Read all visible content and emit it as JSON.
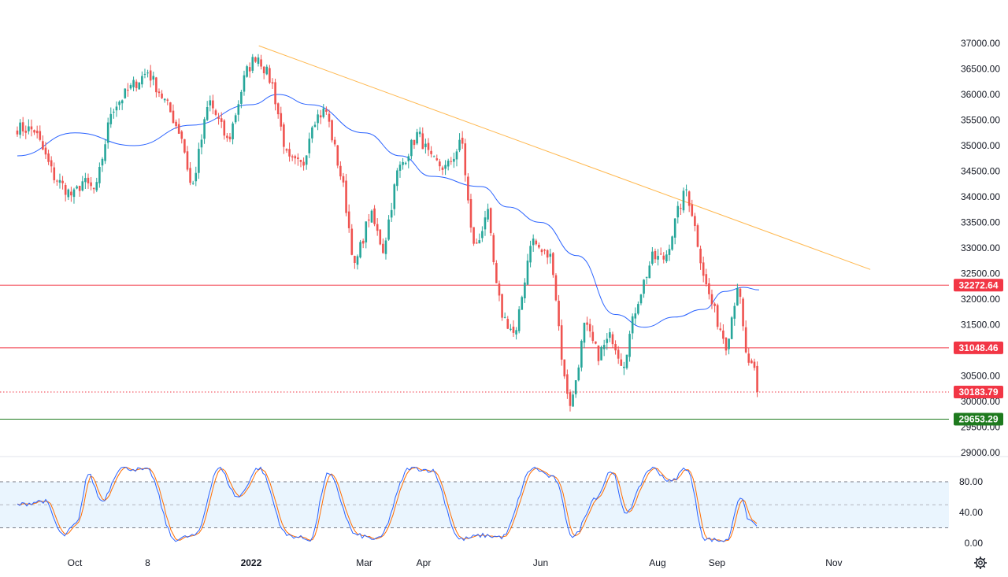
{
  "chart_data": {
    "type": "candlestick",
    "price_axis": {
      "ticks": [
        37000,
        36500,
        36000,
        35500,
        35000,
        34500,
        34000,
        33500,
        33000,
        32500,
        32000,
        31500,
        31000,
        30500,
        30000,
        29500,
        29000
      ],
      "tick_labels": [
        "37000.00",
        "36500.00",
        "36000.00",
        "35500.00",
        "35000.00",
        "34500.00",
        "34000.00",
        "33500.00",
        "33000.00",
        "32500.00",
        "32000.00",
        "31500.00",
        "31000.00",
        "30500.00",
        "30000.00",
        "29500.00",
        "29000.00"
      ],
      "range": [
        29000,
        37000
      ]
    },
    "time_axis": {
      "labels": [
        "Oct",
        "8",
        "2022",
        "Mar",
        "Apr",
        "Jun",
        "Aug",
        "Sep",
        "Nov"
      ],
      "bold_labels": [
        "2022"
      ]
    },
    "levels": [
      {
        "value": 32272.64,
        "label": "32272.64",
        "color": "#f23645",
        "style": "solid"
      },
      {
        "value": 31048.46,
        "label": "31048.46",
        "color": "#f23645",
        "style": "solid"
      },
      {
        "value": 30183.79,
        "label": "30183.79",
        "color": "#f23645",
        "style": "dotted"
      },
      {
        "value": 29653.29,
        "label": "29653.29",
        "color": "#1e7a1e",
        "style": "solid"
      }
    ],
    "trendline": {
      "from": {
        "date": "2022-01-05",
        "value": 36952
      },
      "to": {
        "date": "2022-11-20",
        "value": 32580
      },
      "color": "#ffb74d"
    },
    "moving_average_color": "#2962ff",
    "up_color": "#26a69a",
    "down_color": "#ef5350",
    "anchors": [
      [
        "2021-09-01",
        35350
      ],
      [
        "2021-09-10",
        35300
      ],
      [
        "2021-09-20",
        34400
      ],
      [
        "2021-09-30",
        34000
      ],
      [
        "2021-10-05",
        34300
      ],
      [
        "2021-10-12",
        34100
      ],
      [
        "2021-10-20",
        35700
      ],
      [
        "2021-11-01",
        36200
      ],
      [
        "2021-11-08",
        36450
      ],
      [
        "2021-11-18",
        35800
      ],
      [
        "2021-11-26",
        35150
      ],
      [
        "2021-12-01",
        34100
      ],
      [
        "2021-12-10",
        35900
      ],
      [
        "2021-12-20",
        35050
      ],
      [
        "2021-12-29",
        36400
      ],
      [
        "2022-01-04",
        36800
      ],
      [
        "2022-01-12",
        36200
      ],
      [
        "2022-01-20",
        34700
      ],
      [
        "2022-01-28",
        34600
      ],
      [
        "2022-02-02",
        35500
      ],
      [
        "2022-02-09",
        35700
      ],
      [
        "2022-02-18",
        34200
      ],
      [
        "2022-02-24",
        32600
      ],
      [
        "2022-03-04",
        33700
      ],
      [
        "2022-03-11",
        32950
      ],
      [
        "2022-03-18",
        34450
      ],
      [
        "2022-03-29",
        35250
      ],
      [
        "2022-04-05",
        34700
      ],
      [
        "2022-04-13",
        34550
      ],
      [
        "2022-04-21",
        35100
      ],
      [
        "2022-04-26",
        33200
      ],
      [
        "2022-04-29",
        33000
      ],
      [
        "2022-05-04",
        33800
      ],
      [
        "2022-05-09",
        32200
      ],
      [
        "2022-05-12",
        31700
      ],
      [
        "2022-05-19",
        31250
      ],
      [
        "2022-05-27",
        33200
      ],
      [
        "2022-06-02",
        32900
      ],
      [
        "2022-06-07",
        32800
      ],
      [
        "2022-06-13",
        30500
      ],
      [
        "2022-06-17",
        29890
      ],
      [
        "2022-06-24",
        31500
      ],
      [
        "2022-07-01",
        30900
      ],
      [
        "2022-07-08",
        31300
      ],
      [
        "2022-07-14",
        30700
      ],
      [
        "2022-07-21",
        31900
      ],
      [
        "2022-07-29",
        32800
      ],
      [
        "2022-08-05",
        32800
      ],
      [
        "2022-08-12",
        33750
      ],
      [
        "2022-08-16",
        34150
      ],
      [
        "2022-08-19",
        33700
      ],
      [
        "2022-08-26",
        32300
      ],
      [
        "2022-09-01",
        31600
      ],
      [
        "2022-09-06",
        31100
      ],
      [
        "2022-09-12",
        32350
      ],
      [
        "2022-09-16",
        30900
      ],
      [
        "2022-09-21",
        30500
      ],
      [
        "2022-09-23",
        30184
      ]
    ],
    "ma_points": [
      [
        "2021-09-01",
        34800
      ],
      [
        "2021-10-01",
        35250
      ],
      [
        "2021-11-01",
        35000
      ],
      [
        "2021-12-01",
        35400
      ],
      [
        "2022-01-01",
        35800
      ],
      [
        "2022-01-15",
        36000
      ],
      [
        "2022-02-01",
        35800
      ],
      [
        "2022-03-01",
        35250
      ],
      [
        "2022-03-20",
        34800
      ],
      [
        "2022-04-05",
        34400
      ],
      [
        "2022-05-01",
        34200
      ],
      [
        "2022-05-15",
        33800
      ],
      [
        "2022-06-01",
        33500
      ],
      [
        "2022-06-20",
        32850
      ],
      [
        "2022-07-10",
        31700
      ],
      [
        "2022-07-25",
        31450
      ],
      [
        "2022-08-10",
        31650
      ],
      [
        "2022-08-25",
        31800
      ],
      [
        "2022-09-05",
        32150
      ],
      [
        "2022-09-15",
        32230
      ],
      [
        "2022-09-23",
        32180
      ]
    ],
    "stochastic": {
      "ticks": [
        80,
        40,
        0
      ],
      "tick_labels": [
        "80.00",
        "40.00",
        "0.00"
      ],
      "band": [
        20,
        80
      ],
      "mid": 50,
      "k_color": "#2962ff",
      "d_color": "#ff6d00",
      "k_anchors": [
        [
          "2021-09-01",
          50
        ],
        [
          "2021-09-15",
          55
        ],
        [
          "2021-09-25",
          10
        ],
        [
          "2021-10-02",
          25
        ],
        [
          "2021-10-08",
          90
        ],
        [
          "2021-10-15",
          55
        ],
        [
          "2021-10-25",
          98
        ],
        [
          "2021-11-08",
          95
        ],
        [
          "2021-11-22",
          5
        ],
        [
          "2021-12-03",
          10
        ],
        [
          "2021-12-15",
          98
        ],
        [
          "2021-12-25",
          60
        ],
        [
          "2022-01-05",
          98
        ],
        [
          "2022-01-20",
          10
        ],
        [
          "2022-02-01",
          5
        ],
        [
          "2022-02-10",
          90
        ],
        [
          "2022-02-25",
          10
        ],
        [
          "2022-03-08",
          5
        ],
        [
          "2022-03-25",
          98
        ],
        [
          "2022-04-05",
          95
        ],
        [
          "2022-04-20",
          5
        ],
        [
          "2022-05-02",
          10
        ],
        [
          "2022-05-12",
          8
        ],
        [
          "2022-05-28",
          98
        ],
        [
          "2022-06-08",
          85
        ],
        [
          "2022-06-18",
          8
        ],
        [
          "2022-06-30",
          60
        ],
        [
          "2022-07-08",
          95
        ],
        [
          "2022-07-15",
          40
        ],
        [
          "2022-07-29",
          98
        ],
        [
          "2022-08-08",
          80
        ],
        [
          "2022-08-16",
          98
        ],
        [
          "2022-08-26",
          5
        ],
        [
          "2022-09-06",
          3
        ],
        [
          "2022-09-13",
          60
        ],
        [
          "2022-09-18",
          30
        ],
        [
          "2022-09-23",
          20
        ]
      ]
    }
  },
  "ui": {
    "settings_icon": "gear-icon"
  }
}
